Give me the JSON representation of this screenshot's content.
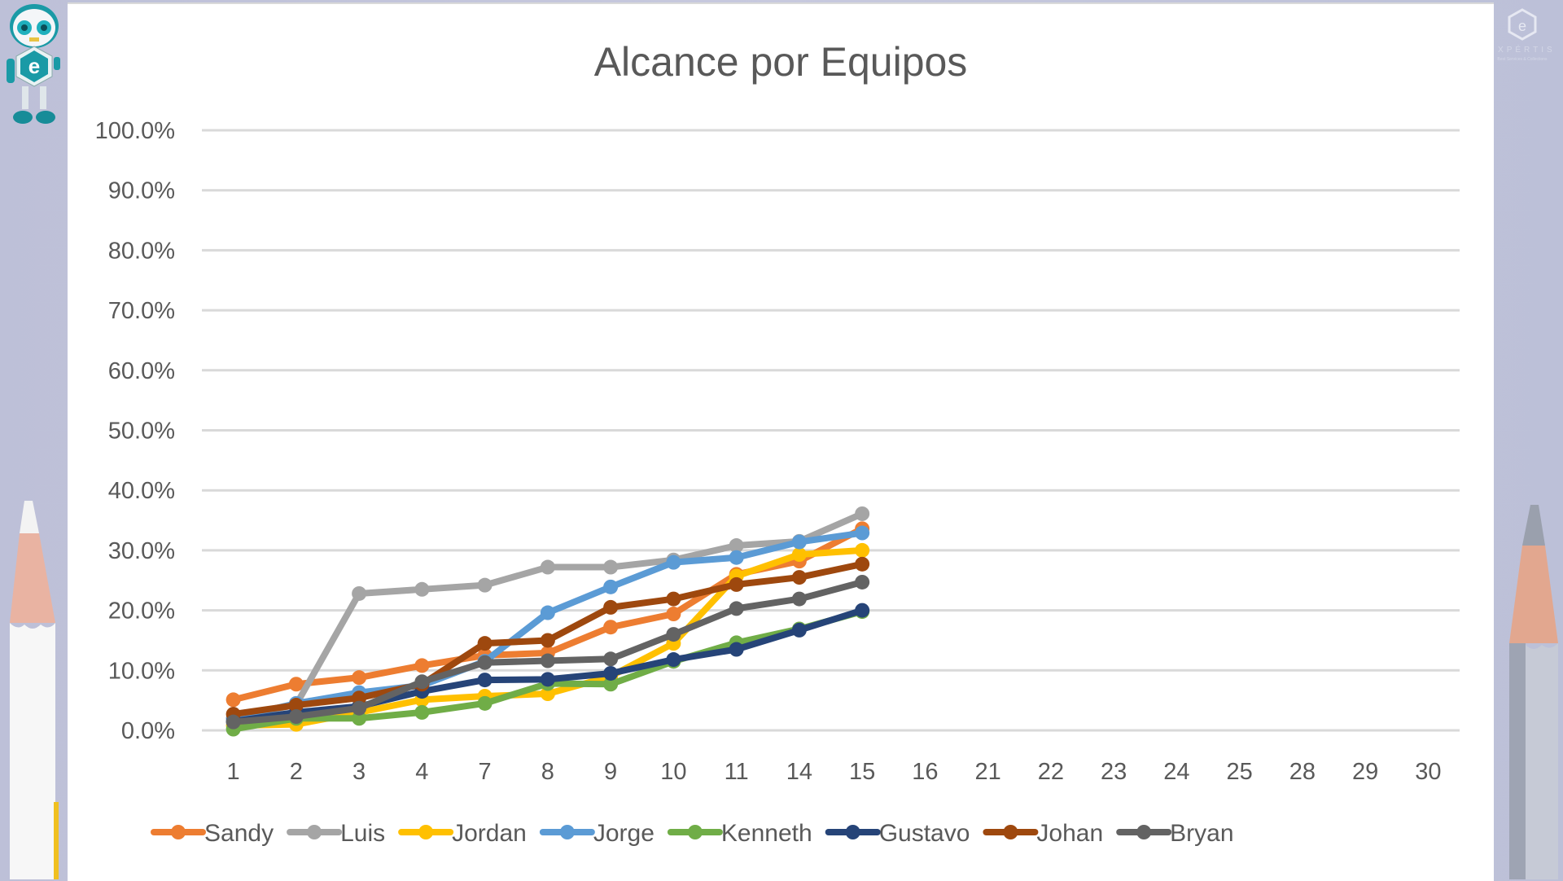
{
  "branding": {
    "mascot": "robot-mascot-e-logo",
    "logo_text": "EXPÉRTIS",
    "logo_subtext": "Best Services & Collections"
  },
  "chart_data": {
    "type": "line",
    "title": "Alcance por Equipos",
    "xlabel": "",
    "ylabel": "",
    "ylim": [
      0,
      100
    ],
    "y_ticks": [
      "0.0%",
      "10.0%",
      "20.0%",
      "30.0%",
      "40.0%",
      "50.0%",
      "60.0%",
      "70.0%",
      "80.0%",
      "90.0%",
      "100.0%"
    ],
    "grid": true,
    "legend_position": "bottom",
    "markers": true,
    "categories": [
      "1",
      "2",
      "3",
      "4",
      "7",
      "8",
      "9",
      "10",
      "11",
      "14",
      "15",
      "16",
      "21",
      "22",
      "23",
      "24",
      "25",
      "28",
      "29",
      "30"
    ],
    "series": [
      {
        "name": "Sandy",
        "color": "#ED7D31",
        "values": [
          5.1,
          7.7,
          8.8,
          10.8,
          12.5,
          12.9,
          17.2,
          19.4,
          26.0,
          28.2,
          33.6
        ]
      },
      {
        "name": "Luis",
        "color": "#A5A5A5",
        "values": [
          2.0,
          4.3,
          22.8,
          23.5,
          24.2,
          27.2,
          27.2,
          28.4,
          30.8,
          31.5,
          36.1
        ]
      },
      {
        "name": "Jordan",
        "color": "#FFC000",
        "values": [
          0.8,
          1.0,
          3.0,
          5.1,
          5.7,
          6.1,
          9.0,
          14.5,
          25.7,
          29.3,
          30.0
        ]
      },
      {
        "name": "Jorge",
        "color": "#5B9BD5",
        "values": [
          2.0,
          4.5,
          6.3,
          7.5,
          11.5,
          19.6,
          23.9,
          28.0,
          28.8,
          31.4,
          32.9
        ]
      },
      {
        "name": "Kenneth",
        "color": "#70AD47",
        "values": [
          0.2,
          2.0,
          2.0,
          3.0,
          4.5,
          7.8,
          7.7,
          11.5,
          14.6,
          16.9,
          19.8
        ]
      },
      {
        "name": "Gustavo",
        "color": "#264478",
        "values": [
          1.5,
          3.0,
          4.0,
          6.5,
          8.4,
          8.5,
          9.5,
          11.8,
          13.5,
          16.7,
          20.0
        ]
      },
      {
        "name": "Johan",
        "color": "#9E480E",
        "values": [
          2.7,
          4.2,
          5.4,
          7.7,
          14.5,
          15.0,
          20.5,
          21.9,
          24.3,
          25.5,
          27.7
        ]
      },
      {
        "name": "Bryan",
        "color": "#636363",
        "values": [
          1.4,
          2.3,
          3.7,
          8.1,
          11.3,
          11.6,
          11.9,
          16.0,
          20.3,
          21.9,
          24.7
        ]
      }
    ]
  }
}
